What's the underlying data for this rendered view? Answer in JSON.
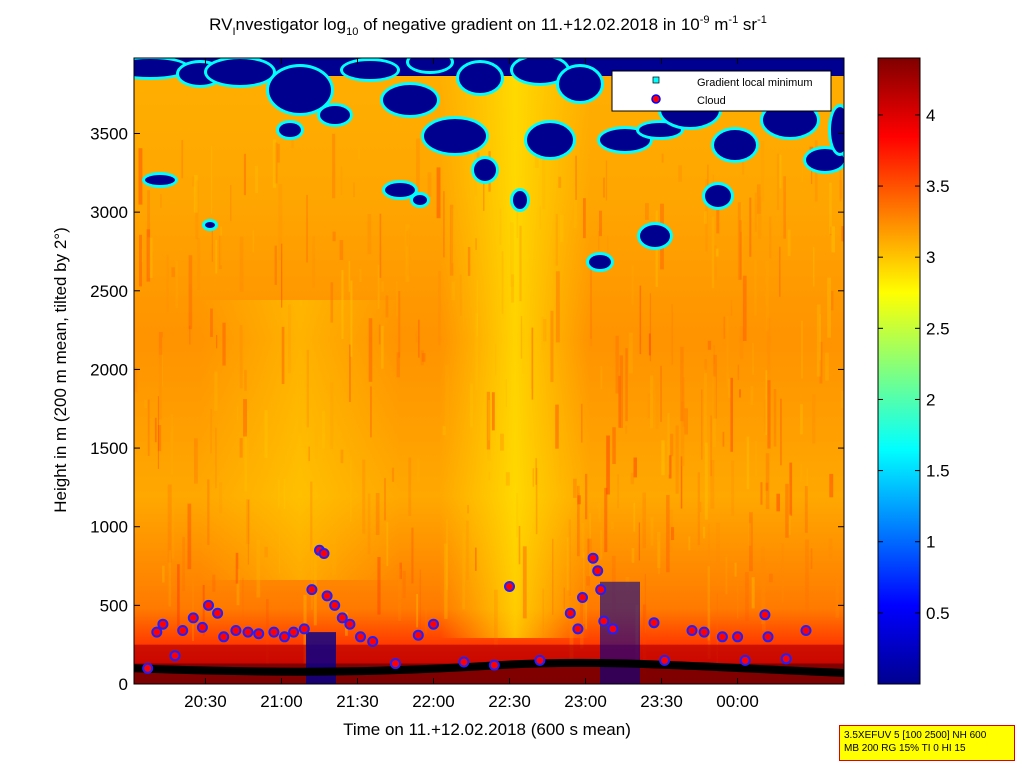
{
  "chart_data": {
    "type": "heatmap",
    "title": {
      "prefix": "RV",
      "prefix_sub": "I",
      "part1": "nvestigator log",
      "part1_sub": "10",
      "part2": " of negative gradient on 11.+12.02.2018 in 10",
      "exp1": "-9",
      "part3": " m",
      "exp2": "-1",
      "part4": " sr",
      "exp3": "-1"
    },
    "xlabel": "Time on 11.+12.02.2018 (600 s mean)",
    "ylabel": "Height in m (200 m mean, tilted by 2°)",
    "x_ticks": [
      "20:30",
      "21:00",
      "21:30",
      "22:00",
      "22:30",
      "23:00",
      "23:30",
      "00:00"
    ],
    "x_tick_hours": [
      20.5,
      21.0,
      21.5,
      22.0,
      22.5,
      23.0,
      23.5,
      24.0
    ],
    "xlim_hours": [
      20.03,
      24.7
    ],
    "y_ticks": [
      "0",
      "500",
      "1000",
      "1500",
      "2000",
      "2500",
      "3000",
      "3500"
    ],
    "y_tick_values": [
      0,
      500,
      1000,
      1500,
      2000,
      2500,
      3000,
      3500
    ],
    "ylim": [
      0,
      3980
    ],
    "colorbar": {
      "ticks": [
        "0.5",
        "1",
        "1.5",
        "2",
        "2.5",
        "3",
        "3.5",
        "4"
      ],
      "tick_values": [
        0.5,
        1,
        1.5,
        2,
        2.5,
        3,
        3.5,
        4
      ],
      "range": [
        0,
        4.4
      ],
      "colormap": "jet"
    },
    "legend": {
      "placement": "top-right",
      "entries": [
        {
          "label": "Gradient local minimum",
          "marker": "square",
          "color": "#00ffff"
        },
        {
          "label": "Cloud",
          "marker": "circle",
          "color": "#ff0000",
          "edge": "#0000ff"
        }
      ]
    },
    "cloud_points": [
      {
        "t": 20.12,
        "h": 100
      },
      {
        "t": 20.18,
        "h": 330
      },
      {
        "t": 20.22,
        "h": 380
      },
      {
        "t": 20.3,
        "h": 180
      },
      {
        "t": 20.35,
        "h": 340
      },
      {
        "t": 20.42,
        "h": 420
      },
      {
        "t": 20.48,
        "h": 360
      },
      {
        "t": 20.52,
        "h": 500
      },
      {
        "t": 20.58,
        "h": 450
      },
      {
        "t": 20.62,
        "h": 300
      },
      {
        "t": 20.7,
        "h": 340
      },
      {
        "t": 20.78,
        "h": 330
      },
      {
        "t": 20.85,
        "h": 320
      },
      {
        "t": 20.95,
        "h": 330
      },
      {
        "t": 21.02,
        "h": 300
      },
      {
        "t": 21.08,
        "h": 330
      },
      {
        "t": 21.15,
        "h": 350
      },
      {
        "t": 21.2,
        "h": 600
      },
      {
        "t": 21.25,
        "h": 850
      },
      {
        "t": 21.28,
        "h": 830
      },
      {
        "t": 21.3,
        "h": 560
      },
      {
        "t": 21.35,
        "h": 500
      },
      {
        "t": 21.4,
        "h": 420
      },
      {
        "t": 21.45,
        "h": 380
      },
      {
        "t": 21.52,
        "h": 300
      },
      {
        "t": 21.6,
        "h": 270
      },
      {
        "t": 21.75,
        "h": 130
      },
      {
        "t": 21.9,
        "h": 310
      },
      {
        "t": 22.0,
        "h": 380
      },
      {
        "t": 22.2,
        "h": 140
      },
      {
        "t": 22.4,
        "h": 120
      },
      {
        "t": 22.5,
        "h": 620
      },
      {
        "t": 22.7,
        "h": 150
      },
      {
        "t": 22.9,
        "h": 450
      },
      {
        "t": 22.95,
        "h": 350
      },
      {
        "t": 22.98,
        "h": 550
      },
      {
        "t": 23.05,
        "h": 800
      },
      {
        "t": 23.08,
        "h": 720
      },
      {
        "t": 23.1,
        "h": 600
      },
      {
        "t": 23.12,
        "h": 400
      },
      {
        "t": 23.18,
        "h": 350
      },
      {
        "t": 23.45,
        "h": 390
      },
      {
        "t": 23.52,
        "h": 150
      },
      {
        "t": 23.7,
        "h": 340
      },
      {
        "t": 23.78,
        "h": 330
      },
      {
        "t": 23.9,
        "h": 300
      },
      {
        "t": 24.0,
        "h": 300
      },
      {
        "t": 24.05,
        "h": 150
      },
      {
        "t": 24.18,
        "h": 440
      },
      {
        "t": 24.2,
        "h": 300
      },
      {
        "t": 24.32,
        "h": 160
      },
      {
        "t": 24.45,
        "h": 340
      }
    ]
  },
  "info_box": {
    "line1": "3.5XEFUV 5 [100 2500] NH 600",
    "line2": "MB 200 RG 15% TI 0 HI 15"
  }
}
